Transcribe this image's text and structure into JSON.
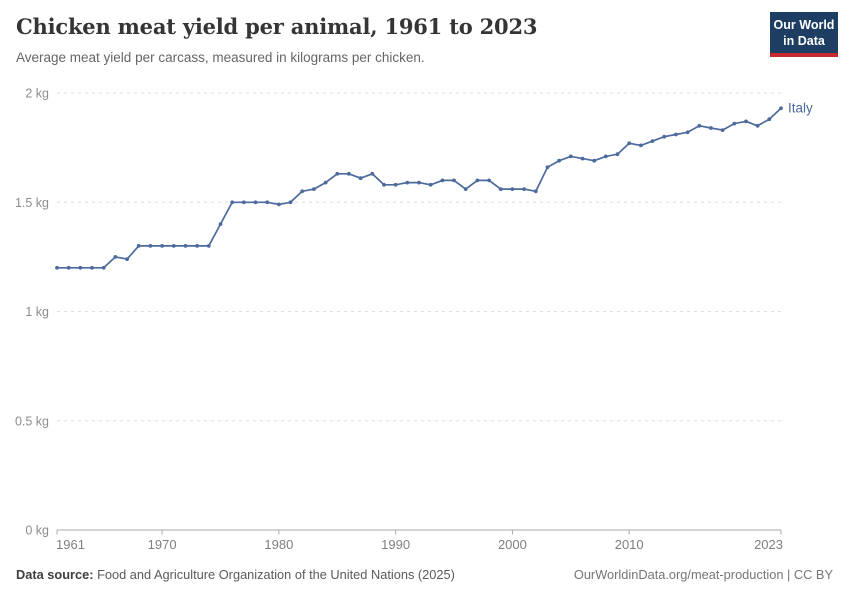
{
  "header": {
    "title": "Chicken meat yield per animal, 1961 to 2023",
    "subtitle": "Average meat yield per carcass, measured in kilograms per chicken.",
    "logo": {
      "line1": "Our World",
      "line2": "in Data",
      "bg_color": "#1d3d63",
      "accent_color": "#c7282d"
    }
  },
  "chart_data": {
    "type": "line",
    "title": "Chicken meat yield per animal, 1961 to 2023",
    "xlabel": "",
    "ylabel": "",
    "xlim": [
      1961,
      2023
    ],
    "ylim": [
      0,
      2
    ],
    "xticks": [
      1961,
      1970,
      1980,
      1990,
      2000,
      2010,
      2023
    ],
    "yticks": [
      0,
      0.5,
      1,
      1.5,
      2
    ],
    "ytick_labels": [
      "0 kg",
      "0.5 kg",
      "1 kg",
      "1.5 kg",
      "2 kg"
    ],
    "grid": "horizontal-dashed",
    "legend_position": "end-of-line-label",
    "series": [
      {
        "name": "Italy",
        "color": "#4C6A9C",
        "x": [
          1961,
          1962,
          1963,
          1964,
          1965,
          1966,
          1967,
          1968,
          1969,
          1970,
          1971,
          1972,
          1973,
          1974,
          1975,
          1976,
          1977,
          1978,
          1979,
          1980,
          1981,
          1982,
          1983,
          1984,
          1985,
          1986,
          1987,
          1988,
          1989,
          1990,
          1991,
          1992,
          1993,
          1994,
          1995,
          1996,
          1997,
          1998,
          1999,
          2000,
          2001,
          2002,
          2003,
          2004,
          2005,
          2006,
          2007,
          2008,
          2009,
          2010,
          2011,
          2012,
          2013,
          2014,
          2015,
          2016,
          2017,
          2018,
          2019,
          2020,
          2021,
          2022,
          2023
        ],
        "values": [
          1.2,
          1.2,
          1.2,
          1.2,
          1.2,
          1.25,
          1.24,
          1.3,
          1.3,
          1.3,
          1.3,
          1.3,
          1.3,
          1.3,
          1.4,
          1.5,
          1.5,
          1.5,
          1.5,
          1.49,
          1.5,
          1.55,
          1.56,
          1.59,
          1.63,
          1.63,
          1.61,
          1.63,
          1.58,
          1.58,
          1.59,
          1.59,
          1.58,
          1.6,
          1.6,
          1.56,
          1.6,
          1.6,
          1.56,
          1.56,
          1.56,
          1.55,
          1.66,
          1.69,
          1.71,
          1.7,
          1.69,
          1.71,
          1.72,
          1.77,
          1.76,
          1.78,
          1.8,
          1.81,
          1.82,
          1.85,
          1.84,
          1.83,
          1.86,
          1.87,
          1.85,
          1.88,
          1.93
        ]
      }
    ]
  },
  "footer": {
    "source_label": "Data source:",
    "source_text": " Food and Agriculture Organization of the United Nations (2025)",
    "credit": "OurWorldinData.org/meat-production | CC BY"
  }
}
